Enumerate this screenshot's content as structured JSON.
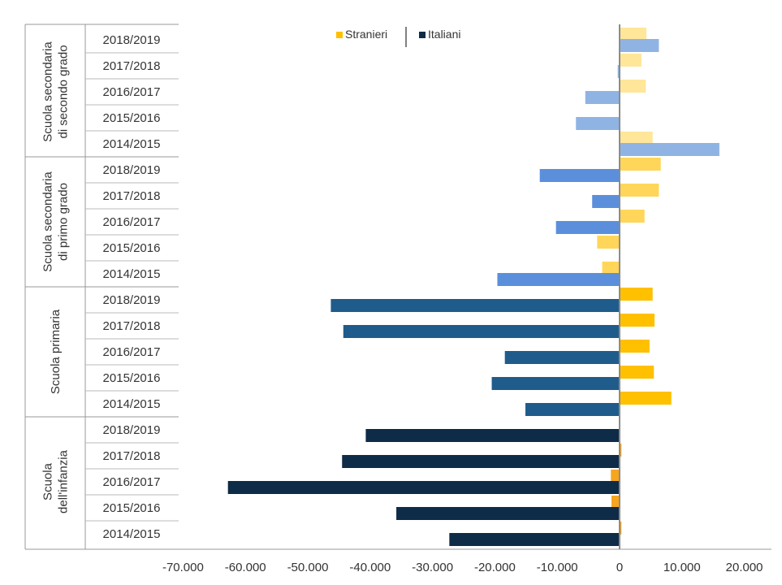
{
  "chart_data": {
    "type": "bar",
    "orientation": "horizontal",
    "legend": {
      "placement": "top-center",
      "entries": [
        {
          "name": "Stranieri",
          "color": "#FFC000"
        },
        {
          "name": "Italiani",
          "color": "#0E2B47"
        }
      ]
    },
    "x_axis": {
      "range": [
        -70000,
        20000
      ],
      "ticks": [
        -70000,
        -60000,
        -50000,
        -40000,
        -30000,
        -20000,
        -10000,
        0,
        10000,
        20000
      ],
      "tick_labels": [
        "-70.000",
        "-60.000",
        "-50.000",
        "-40.000",
        "-30.000",
        "-20.000",
        "-10.000",
        "0",
        "10.000",
        "20.000"
      ]
    },
    "grid": false,
    "groups": [
      {
        "name_lines": [
          "Scuola secondaria",
          "di secondo grado"
        ],
        "colors": {
          "stranieri": "#FFE699",
          "italiani": "#8FB4E3"
        },
        "rows": [
          {
            "year": "2018/2019",
            "stranieri": 4300,
            "italiani": 6300
          },
          {
            "year": "2017/2018",
            "stranieri": 3500,
            "italiani": -300
          },
          {
            "year": "2016/2017",
            "stranieri": 4200,
            "italiani": -5500
          },
          {
            "year": "2015/2016",
            "stranieri": 0,
            "italiani": -7000
          },
          {
            "year": "2014/2015",
            "stranieri": 5300,
            "italiani": 16000
          }
        ]
      },
      {
        "name_lines": [
          "Scuola secondaria",
          "di primo grado"
        ],
        "colors": {
          "stranieri": "#FFD659",
          "italiani": "#5B8FDC"
        },
        "rows": [
          {
            "year": "2018/2019",
            "stranieri": 6600,
            "italiani": -12800
          },
          {
            "year": "2017/2018",
            "stranieri": 6300,
            "italiani": -4400
          },
          {
            "year": "2016/2017",
            "stranieri": 4000,
            "italiani": -10200
          },
          {
            "year": "2015/2016",
            "stranieri": -3600,
            "italiani": 0
          },
          {
            "year": "2014/2015",
            "stranieri": -2800,
            "italiani": -19600
          }
        ]
      },
      {
        "name_lines": [
          "Scuola primaria"
        ],
        "colors": {
          "stranieri": "#FFC000",
          "italiani": "#1F5C8B"
        },
        "rows": [
          {
            "year": "2018/2019",
            "stranieri": 5300,
            "italiani": -46300
          },
          {
            "year": "2017/2018",
            "stranieri": 5600,
            "italiani": -44300
          },
          {
            "year": "2016/2017",
            "stranieri": 4800,
            "italiani": -18400
          },
          {
            "year": "2015/2016",
            "stranieri": 5500,
            "italiani": -20500
          },
          {
            "year": "2014/2015",
            "stranieri": 8300,
            "italiani": -15100
          }
        ]
      },
      {
        "name_lines": [
          "Scuola",
          "dell'infanzia"
        ],
        "colors": {
          "stranieri": "#F5A51E",
          "italiani": "#0E2B47"
        },
        "rows": [
          {
            "year": "2018/2019",
            "stranieri": 0,
            "italiani": -40700
          },
          {
            "year": "2017/2018",
            "stranieri": 300,
            "italiani": -44500
          },
          {
            "year": "2016/2017",
            "stranieri": -1400,
            "italiani": -62800
          },
          {
            "year": "2015/2016",
            "stranieri": -1300,
            "italiani": -35800
          },
          {
            "year": "2014/2015",
            "stranieri": 300,
            "italiani": -27300
          }
        ]
      }
    ]
  }
}
